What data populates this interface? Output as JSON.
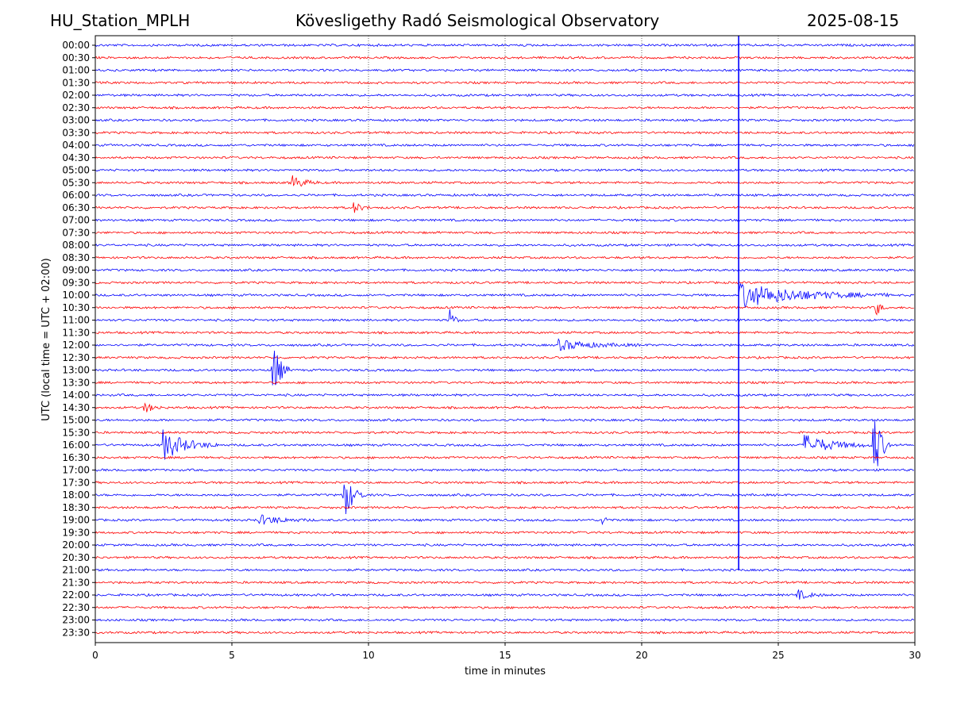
{
  "header": {
    "station": "HU_Station_MPLH",
    "observatory": "Kövesligethy Radó Seismological Observatory",
    "date": "2025-08-15"
  },
  "chart_data": {
    "type": "line",
    "title": "Kövesligethy Radó Seismological Observatory",
    "xlabel": "time in minutes",
    "ylabel": "UTC (local time = UTC + 02:00)",
    "xlim": [
      0,
      30
    ],
    "xticks": [
      0,
      5,
      10,
      15,
      20,
      25,
      30
    ],
    "grid": "vertical dotted at x ticks",
    "row_labels": [
      "00:00",
      "00:30",
      "01:00",
      "01:30",
      "02:00",
      "02:30",
      "03:00",
      "03:30",
      "04:00",
      "04:30",
      "05:00",
      "05:30",
      "06:00",
      "06:30",
      "07:00",
      "07:30",
      "08:00",
      "08:30",
      "09:00",
      "09:30",
      "10:00",
      "10:30",
      "11:00",
      "11:30",
      "12:00",
      "12:30",
      "13:00",
      "13:30",
      "14:00",
      "14:30",
      "15:00",
      "15:30",
      "16:00",
      "16:30",
      "17:00",
      "17:30",
      "18:00",
      "18:30",
      "19:00",
      "19:30",
      "20:00",
      "20:30",
      "21:00",
      "21:30",
      "22:00",
      "22:30",
      "23:00",
      "23:30"
    ],
    "colors": [
      "#0000ff",
      "#ff0000"
    ],
    "events": [
      {
        "row": 11,
        "x": 7.2,
        "amp": 0.6,
        "dur": 1.0
      },
      {
        "row": 13,
        "x": 9.5,
        "amp": 0.4,
        "dur": 0.6
      },
      {
        "row": 20,
        "x": 23.6,
        "amp": 1.0,
        "dur": 5.5
      },
      {
        "row": 21,
        "x": 28.6,
        "amp": 0.8,
        "dur": 0.3
      },
      {
        "row": 22,
        "x": 13.0,
        "amp": 1.0,
        "dur": 0.3
      },
      {
        "row": 24,
        "x": 17.0,
        "amp": 0.4,
        "dur": 3.0
      },
      {
        "row": 26,
        "x": 6.5,
        "amp": 2.6,
        "dur": 0.6
      },
      {
        "row": 29,
        "x": 1.8,
        "amp": 0.4,
        "dur": 0.8
      },
      {
        "row": 32,
        "x": 2.5,
        "amp": 1.2,
        "dur": 2.0
      },
      {
        "row": 32,
        "x": 26.0,
        "amp": 0.8,
        "dur": 2.5
      },
      {
        "row": 32,
        "x": 28.5,
        "amp": 3.2,
        "dur": 0.6
      },
      {
        "row": 36,
        "x": 9.1,
        "amp": 2.0,
        "dur": 0.8
      },
      {
        "row": 38,
        "x": 6.0,
        "amp": 0.4,
        "dur": 2.0
      },
      {
        "row": 38,
        "x": 18.6,
        "amp": 0.4,
        "dur": 0.3
      },
      {
        "row": 44,
        "x": 25.7,
        "amp": 0.4,
        "dur": 1.0
      }
    ],
    "spike": {
      "x": 23.55,
      "from_row": 0,
      "to_row": 42
    }
  }
}
